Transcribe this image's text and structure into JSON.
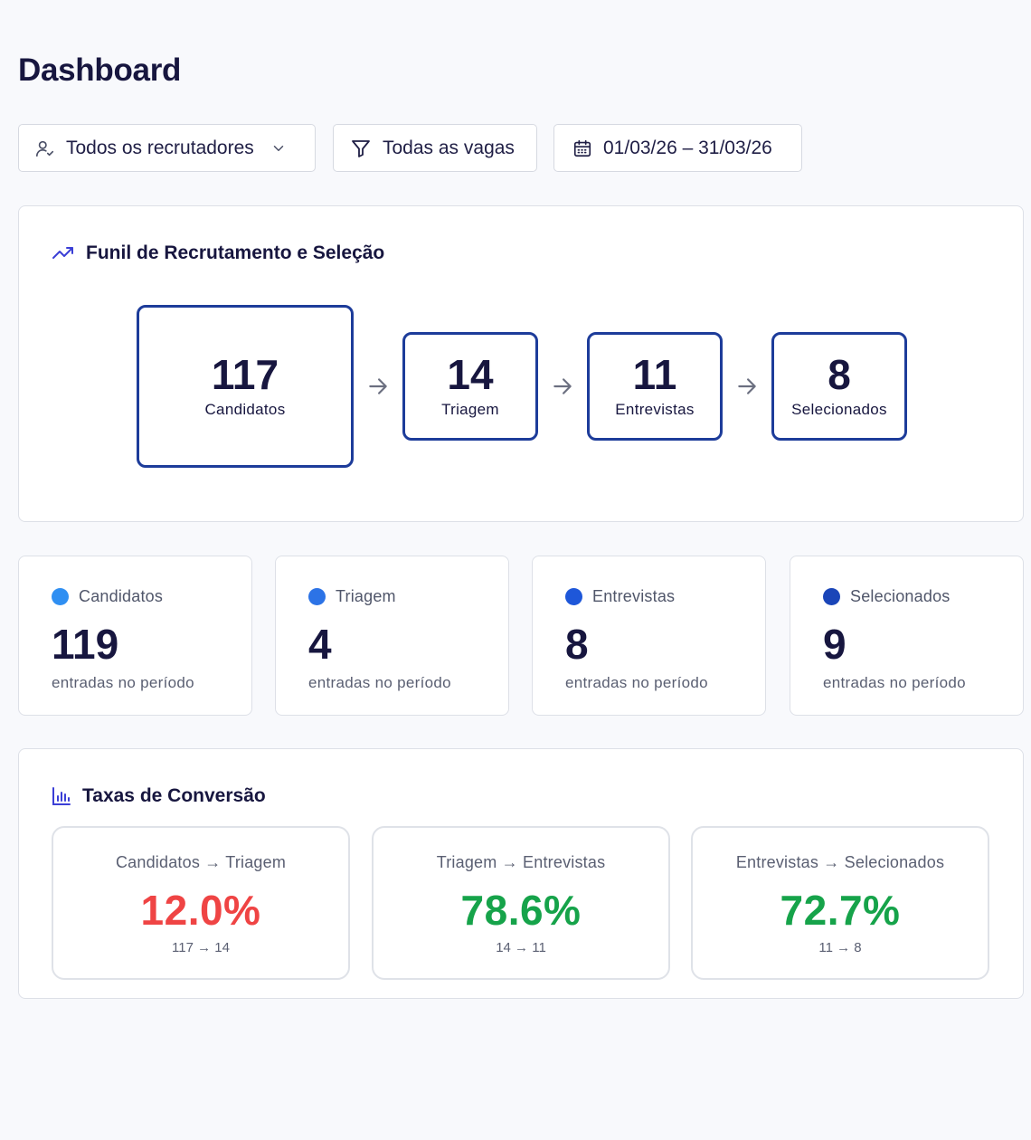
{
  "header": {
    "title": "Dashboard"
  },
  "filters": {
    "recruiters": {
      "label": "Todos os recrutadores",
      "icon": "user-check-icon"
    },
    "jobs": {
      "label": "Todas as vagas",
      "icon": "filter-icon"
    },
    "date_range": {
      "label": "01/03/26 – 31/03/26",
      "icon": "calendar-icon"
    }
  },
  "funnel": {
    "title": "Funil de Recrutamento e Seleção",
    "stages": [
      {
        "value": "117",
        "label": "Candidatos"
      },
      {
        "value": "14",
        "label": "Triagem"
      },
      {
        "value": "11",
        "label": "Entrevistas"
      },
      {
        "value": "8",
        "label": "Selecionados"
      }
    ]
  },
  "stats": [
    {
      "label": "Candidatos",
      "value": "119",
      "sub": "entradas no período",
      "color": "#2f8ff2"
    },
    {
      "label": "Triagem",
      "value": "4",
      "sub": "entradas no período",
      "color": "#2c73e6"
    },
    {
      "label": "Entrevistas",
      "value": "8",
      "sub": "entradas no período",
      "color": "#1e57d9"
    },
    {
      "label": "Selecionados",
      "value": "9",
      "sub": "entradas no período",
      "color": "#1a45b8"
    }
  ],
  "conversion": {
    "title": "Taxas de Conversão",
    "rates": [
      {
        "title": "Candidatos → Triagem",
        "value": "12.0%",
        "sub": "117 → 14",
        "color": "#ef4444"
      },
      {
        "title": "Triagem → Entrevistas",
        "value": "78.6%",
        "sub": "14 → 11",
        "color": "#16a34a"
      },
      {
        "title": "Entrevistas → Selecionados",
        "value": "72.7%",
        "sub": "11 → 8",
        "color": "#16a34a"
      }
    ]
  },
  "colors": {
    "accent": "#1d3c9a",
    "text": "#17163f",
    "danger": "#ef4444",
    "success": "#16a34a"
  }
}
